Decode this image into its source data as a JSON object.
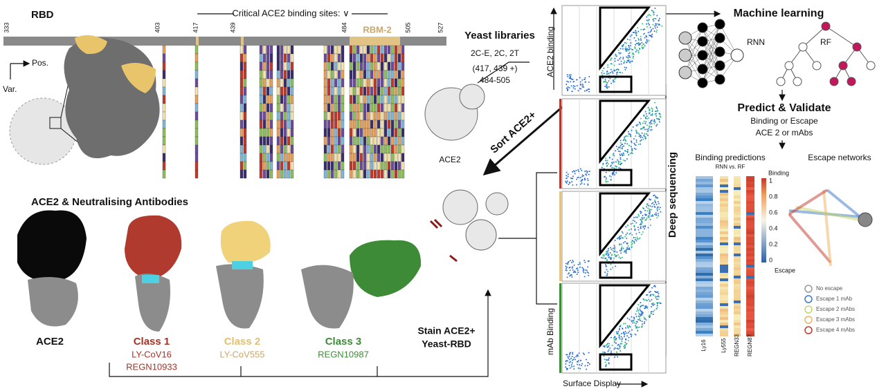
{
  "rbd": {
    "title": "RBD",
    "positions": [
      "333",
      "403",
      "417",
      "439",
      "484",
      "505",
      "527"
    ],
    "critical_sites": "Critical ACE2 binding sites: ∨",
    "rbm": "RBM-2",
    "pos_label": "Pos.",
    "var_label": "Var."
  },
  "antibodies": {
    "title": "ACE2 & Neutralising Antibodies",
    "ace2": "ACE2",
    "classes": [
      {
        "name": "Class 1",
        "antibodies": [
          "LY-CoV16",
          "REGN10933"
        ]
      },
      {
        "name": "Class 2",
        "antibodies": [
          "LY-CoV555"
        ]
      },
      {
        "name": "Class 3",
        "antibodies": [
          "REGN10987"
        ]
      }
    ]
  },
  "yeast": {
    "title": "Yeast libraries",
    "libraries": "2C-E, 2C, 2T",
    "sites": "(417, 439 +)",
    "range": "484-505",
    "ace2": "ACE2",
    "sort": "Sort ACE2+",
    "stain": [
      "Stain ACE2+",
      "Yeast-RBD"
    ]
  },
  "facs": {
    "y_top": "ACE2 binding",
    "y_bottom": "mAb Binding",
    "x": "Surface Display",
    "sequencing": "Deep sequencing"
  },
  "ml": {
    "title": "Machine learning",
    "rnn": "RNN",
    "rf": "RF",
    "predict": "Predict & Validate",
    "line1": "Binding or Escape",
    "line2": "ACE 2 or mAbs"
  },
  "predictions": {
    "title": "Binding predictions",
    "subtitle": "RNN vs. RF",
    "colorbar_title": "Binding",
    "colorbar_ticks": [
      "1",
      "0.8",
      "0.6",
      "0.4",
      "0.2",
      "0"
    ],
    "colorbar_bottom": "Escape",
    "columns": [
      "Ly16",
      "Ly555",
      "REGN33",
      "REGN87"
    ]
  },
  "network": {
    "title": "Escape networks",
    "legend": [
      "No escape",
      "Escape 1 mAb",
      "Escape 2 mAbs",
      "Escape 3 mAbs",
      "Escape 4 mAbs"
    ]
  }
}
